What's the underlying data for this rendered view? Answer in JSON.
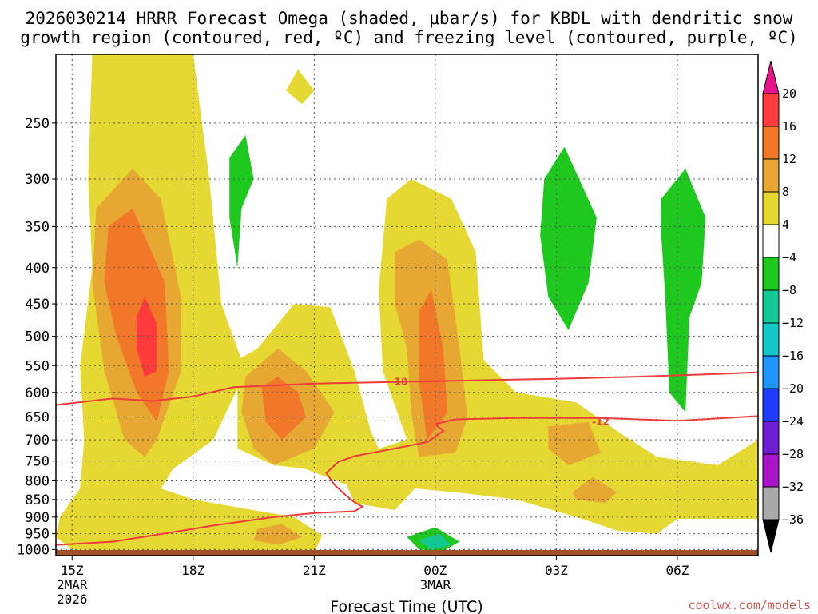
{
  "chart_data": {
    "type": "heatmap",
    "title_line1": "2026030214 HRRR Forecast Omega (shaded, μbar/s) for KBDL with dendritic snow",
    "title_line2": "growth region (contoured, red, ºC) and freezing level (contoured, purple, ºC)",
    "xlabel": "Forecast Time (UTC)",
    "credit": "coolwx.com/models",
    "x_hours_from_15z": {
      "min": -0.4,
      "max": 17.0
    },
    "x_ticks": [
      {
        "hour": 0,
        "label": "15Z",
        "sub1": "2MAR",
        "sub2": "2026"
      },
      {
        "hour": 3,
        "label": "18Z",
        "sub1": "",
        "sub2": ""
      },
      {
        "hour": 6,
        "label": "21Z",
        "sub1": "",
        "sub2": ""
      },
      {
        "hour": 9,
        "label": "00Z",
        "sub1": "3MAR",
        "sub2": ""
      },
      {
        "hour": 12,
        "label": "03Z",
        "sub1": "",
        "sub2": ""
      },
      {
        "hour": 15,
        "label": "06Z",
        "sub1": "",
        "sub2": ""
      }
    ],
    "y_pressure_hpa": {
      "top": 200,
      "bottom": 1020,
      "scale": "log"
    },
    "y_ticks": [
      250,
      300,
      350,
      400,
      450,
      500,
      550,
      600,
      650,
      700,
      750,
      800,
      850,
      900,
      950,
      1000
    ],
    "colorbar": {
      "levels": [
        "20",
        "16",
        "12",
        "8",
        "4",
        "−4",
        "−8",
        "−12",
        "−16",
        "−20",
        "−24",
        "−28",
        "−32",
        "−36"
      ],
      "colors": [
        "#ff3b3b",
        "#f07828",
        "#e6a832",
        "#e6d832",
        "#ffffff",
        "#1ec81e",
        "#14c896",
        "#14c8c8",
        "#1e96ff",
        "#1e3cff",
        "#6e1ed2",
        "#aa14c8",
        "#aaaaaa"
      ],
      "top_arrow_color": "#e6148c",
      "bottom_arrow_color": "#000000"
    },
    "contour_labels": [
      {
        "value": "-18",
        "hour": 8.1,
        "p": 580
      },
      {
        "value": "-12",
        "hour": 13.1,
        "p": 660
      }
    ],
    "dgz_contours": [
      {
        "name": "upper (-18C)",
        "points": [
          [
            -0.4,
            625
          ],
          [
            1,
            612
          ],
          [
            2,
            617
          ],
          [
            3,
            608
          ],
          [
            4,
            590
          ],
          [
            6,
            583
          ],
          [
            8,
            580
          ],
          [
            10,
            577
          ],
          [
            12,
            574
          ],
          [
            14,
            570
          ],
          [
            16,
            565
          ],
          [
            17,
            562
          ]
        ]
      },
      {
        "name": "lower (-12C)",
        "points": [
          [
            9,
            665
          ],
          [
            9.5,
            655
          ],
          [
            11,
            652
          ],
          [
            13.1,
            652
          ],
          [
            15,
            658
          ],
          [
            17,
            648
          ]
        ]
      },
      {
        "name": "lower (-12C) mid-level",
        "points": [
          [
            -0.4,
            985
          ],
          [
            1,
            975
          ],
          [
            2,
            955
          ],
          [
            3.5,
            925
          ],
          [
            5,
            900
          ],
          [
            6,
            888
          ],
          [
            7,
            883
          ],
          [
            7.2,
            870
          ],
          [
            7,
            858
          ],
          [
            6.8,
            840
          ],
          [
            6.5,
            810
          ],
          [
            6.3,
            780
          ],
          [
            6.6,
            752
          ],
          [
            7,
            738
          ],
          [
            8,
            720
          ],
          [
            8.8,
            705
          ],
          [
            9.2,
            680
          ],
          [
            9,
            665
          ]
        ]
      }
    ],
    "omega_regions": [
      {
        "band": "4-8",
        "points": [
          [
            0.5,
            200
          ],
          [
            3,
            200
          ],
          [
            3.4,
            300
          ],
          [
            3.7,
            450
          ],
          [
            4.3,
            560
          ],
          [
            3.5,
            700
          ],
          [
            2.5,
            770
          ],
          [
            2.2,
            820
          ],
          [
            3,
            850
          ],
          [
            4,
            870
          ],
          [
            5.5,
            900
          ],
          [
            6.2,
            955
          ],
          [
            6,
            1010
          ],
          [
            4,
            1005
          ],
          [
            2,
            1010
          ],
          [
            0,
            1000
          ],
          [
            -0.4,
            960
          ],
          [
            -0.3,
            900
          ],
          [
            0.2,
            820
          ],
          [
            0.3,
            700
          ],
          [
            0.2,
            550
          ],
          [
            0.5,
            400
          ],
          [
            0.4,
            300
          ]
        ]
      },
      {
        "band": "4-8",
        "points": [
          [
            4.1,
            540
          ],
          [
            4.6,
            520
          ],
          [
            5.5,
            450
          ],
          [
            6.4,
            455
          ],
          [
            7,
            560
          ],
          [
            7.4,
            680
          ],
          [
            7.6,
            720
          ],
          [
            8.3,
            700
          ],
          [
            7.7,
            560
          ],
          [
            7.6,
            430
          ],
          [
            7.8,
            320
          ],
          [
            8.4,
            300
          ],
          [
            9.4,
            320
          ],
          [
            10,
            380
          ],
          [
            10.2,
            540
          ],
          [
            11,
            600
          ],
          [
            12.5,
            620
          ],
          [
            13.5,
            680
          ],
          [
            14.5,
            740
          ],
          [
            16,
            760
          ],
          [
            17,
            700
          ],
          [
            17,
            905
          ],
          [
            15,
            905
          ],
          [
            14.5,
            950
          ],
          [
            13.5,
            940
          ],
          [
            12.5,
            900
          ],
          [
            11,
            850
          ],
          [
            9.5,
            830
          ],
          [
            8.5,
            820
          ],
          [
            8,
            880
          ],
          [
            7,
            860
          ],
          [
            6.8,
            810
          ],
          [
            6.3,
            790
          ],
          [
            5.8,
            770
          ],
          [
            5,
            760
          ],
          [
            4.1,
            720
          ]
        ]
      },
      {
        "band": "4-8",
        "points": [
          [
            5.6,
            210
          ],
          [
            6,
            225
          ],
          [
            5.7,
            235
          ],
          [
            5.3,
            225
          ]
        ]
      },
      {
        "band": "8-12",
        "points": [
          [
            0.6,
            330
          ],
          [
            1.5,
            290
          ],
          [
            2.2,
            320
          ],
          [
            2.7,
            440
          ],
          [
            2.7,
            560
          ],
          [
            2.1,
            700
          ],
          [
            1.8,
            740
          ],
          [
            1.3,
            700
          ],
          [
            0.8,
            560
          ],
          [
            0.5,
            420
          ]
        ]
      },
      {
        "band": "8-12",
        "points": [
          [
            4.3,
            570
          ],
          [
            5.1,
            520
          ],
          [
            5.8,
            560
          ],
          [
            6.5,
            640
          ],
          [
            6,
            720
          ],
          [
            5,
            760
          ],
          [
            4.5,
            720
          ],
          [
            4.2,
            640
          ]
        ]
      },
      {
        "band": "8-12",
        "points": [
          [
            8,
            380
          ],
          [
            8.6,
            365
          ],
          [
            9.3,
            390
          ],
          [
            9.6,
            520
          ],
          [
            9.8,
            650
          ],
          [
            9.5,
            730
          ],
          [
            8.6,
            740
          ],
          [
            8.4,
            640
          ],
          [
            8.3,
            520
          ],
          [
            8,
            450
          ]
        ]
      },
      {
        "band": "8-12",
        "points": [
          [
            11.8,
            670
          ],
          [
            12.8,
            660
          ],
          [
            13.1,
            730
          ],
          [
            12.3,
            760
          ],
          [
            11.8,
            720
          ]
        ]
      },
      {
        "band": "8-12",
        "points": [
          [
            12.4,
            830
          ],
          [
            12.9,
            790
          ],
          [
            13.5,
            830
          ],
          [
            13.2,
            860
          ],
          [
            12.5,
            850
          ]
        ]
      },
      {
        "band": "8-12",
        "points": [
          [
            4.6,
            935
          ],
          [
            5.2,
            920
          ],
          [
            5.7,
            960
          ],
          [
            5.1,
            985
          ],
          [
            4.5,
            970
          ]
        ]
      },
      {
        "band": "12-16",
        "points": [
          [
            0.9,
            350
          ],
          [
            1.5,
            330
          ],
          [
            2.3,
            420
          ],
          [
            2.4,
            560
          ],
          [
            2.1,
            660
          ],
          [
            1.6,
            600
          ],
          [
            1.1,
            500
          ],
          [
            0.8,
            420
          ]
        ]
      },
      {
        "band": "12-16",
        "points": [
          [
            4.7,
            590
          ],
          [
            5.1,
            570
          ],
          [
            5.6,
            600
          ],
          [
            5.8,
            650
          ],
          [
            5.2,
            700
          ],
          [
            4.8,
            660
          ]
        ]
      },
      {
        "band": "12-16",
        "points": [
          [
            8.6,
            460
          ],
          [
            8.9,
            430
          ],
          [
            9.2,
            520
          ],
          [
            9.3,
            640
          ],
          [
            8.8,
            700
          ],
          [
            8.6,
            580
          ]
        ]
      },
      {
        "band": "16-20",
        "points": [
          [
            1.6,
            470
          ],
          [
            1.8,
            440
          ],
          [
            2.1,
            480
          ],
          [
            2.1,
            560
          ],
          [
            1.8,
            570
          ],
          [
            1.6,
            520
          ]
        ]
      },
      {
        "band": "-4--8",
        "points": [
          [
            3.9,
            280
          ],
          [
            4.3,
            260
          ],
          [
            4.5,
            300
          ],
          [
            4.2,
            330
          ],
          [
            4.1,
            400
          ],
          [
            3.9,
            340
          ]
        ]
      },
      {
        "band": "-4--8",
        "points": [
          [
            11.7,
            300
          ],
          [
            12.2,
            270
          ],
          [
            13,
            340
          ],
          [
            12.8,
            420
          ],
          [
            12.3,
            490
          ],
          [
            11.8,
            440
          ],
          [
            11.6,
            360
          ]
        ]
      },
      {
        "band": "-4--8",
        "points": [
          [
            14.6,
            320
          ],
          [
            15.2,
            290
          ],
          [
            15.7,
            340
          ],
          [
            15.6,
            420
          ],
          [
            15.3,
            470
          ],
          [
            15.2,
            640
          ],
          [
            14.8,
            600
          ],
          [
            14.7,
            440
          ],
          [
            14.6,
            360
          ]
        ]
      },
      {
        "band": "-4--8",
        "points": [
          [
            8.3,
            960
          ],
          [
            9,
            930
          ],
          [
            9.6,
            975
          ],
          [
            9.2,
            1005
          ],
          [
            8.6,
            1000
          ]
        ]
      },
      {
        "band": "-8--12",
        "points": [
          [
            8.6,
            970
          ],
          [
            9.1,
            950
          ],
          [
            9.4,
            985
          ],
          [
            8.9,
            1000
          ]
        ]
      }
    ],
    "ground_color": "#a0522d"
  }
}
